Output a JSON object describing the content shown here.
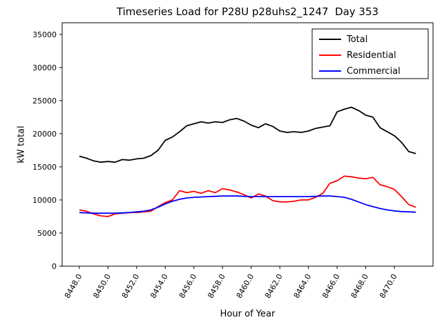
{
  "figure": {
    "title": "Timeseries Load for P28U p28uhs2_1247  Day 353",
    "xlabel": "Hour of Year",
    "ylabel": "kW total"
  },
  "chart_data": {
    "type": "line",
    "title": "Timeseries Load for P28U p28uhs2_1247  Day 353",
    "xlabel": "Hour of Year",
    "ylabel": "kW total",
    "xlim": [
      8446.8,
      8472.7
    ],
    "ylim": [
      0,
      36750
    ],
    "grid": false,
    "legend_position": "upper right",
    "xticks": [
      8448,
      8450,
      8452,
      8454,
      8456,
      8458,
      8460,
      8462,
      8464,
      8466,
      8468,
      8470
    ],
    "yticks": [
      0,
      5000,
      10000,
      15000,
      20000,
      25000,
      30000,
      35000
    ],
    "x": [
      8448.0,
      8448.5,
      8449.0,
      8449.5,
      8450.0,
      8450.5,
      8451.0,
      8451.5,
      8452.0,
      8452.5,
      8453.0,
      8453.5,
      8454.0,
      8454.5,
      8455.0,
      8455.5,
      8456.0,
      8456.5,
      8457.0,
      8457.5,
      8458.0,
      8458.5,
      8459.0,
      8459.5,
      8460.0,
      8460.5,
      8461.0,
      8461.5,
      8462.0,
      8462.5,
      8463.0,
      8463.5,
      8464.0,
      8464.5,
      8465.0,
      8465.5,
      8466.0,
      8466.5,
      8467.0,
      8467.5,
      8468.0,
      8468.5,
      8469.0,
      8469.5,
      8470.0,
      8470.5,
      8471.0,
      8471.5
    ],
    "series": [
      {
        "name": "Total",
        "color": "#000000",
        "values": [
          16600,
          16300,
          15900,
          15700,
          15800,
          15700,
          16100,
          16000,
          16200,
          16300,
          16700,
          17500,
          19000,
          19500,
          20300,
          21200,
          21500,
          21800,
          21600,
          21800,
          21700,
          22100,
          22300,
          21900,
          21300,
          20900,
          21500,
          21100,
          20400,
          20200,
          20300,
          20200,
          20400,
          20800,
          21000,
          21200,
          23300,
          23700,
          24000,
          23500,
          22800,
          22500,
          20900,
          20300,
          19700,
          18700,
          17300,
          17000
        ]
      },
      {
        "name": "Residential",
        "color": "#ff0000",
        "values": [
          8500,
          8300,
          7900,
          7600,
          7500,
          7900,
          8000,
          8100,
          8100,
          8200,
          8300,
          9000,
          9600,
          10000,
          11400,
          11100,
          11300,
          11000,
          11400,
          11100,
          11700,
          11500,
          11200,
          10800,
          10300,
          10900,
          10600,
          9900,
          9700,
          9700,
          9800,
          10000,
          10000,
          10400,
          11000,
          12500,
          12900,
          13600,
          13500,
          13300,
          13200,
          13400,
          12300,
          12000,
          11600,
          10500,
          9300,
          8900
        ]
      },
      {
        "name": "Commercial",
        "color": "#0000ff",
        "values": [
          8100,
          8050,
          8000,
          8000,
          8000,
          8000,
          8050,
          8100,
          8200,
          8300,
          8500,
          8900,
          9400,
          9800,
          10100,
          10300,
          10400,
          10450,
          10500,
          10550,
          10600,
          10600,
          10600,
          10550,
          10500,
          10500,
          10500,
          10500,
          10500,
          10500,
          10500,
          10500,
          10500,
          10550,
          10600,
          10600,
          10500,
          10400,
          10100,
          9700,
          9300,
          9000,
          8700,
          8500,
          8350,
          8250,
          8200,
          8150
        ]
      }
    ]
  }
}
